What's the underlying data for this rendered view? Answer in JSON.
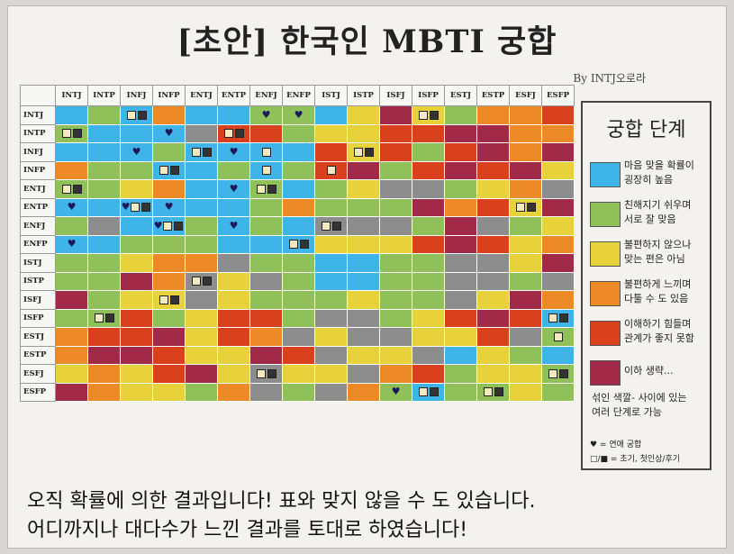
{
  "title": "[초안] 한국인 MBTI 궁합",
  "byline": "By INTJ오로라",
  "types": [
    "INTJ",
    "INTP",
    "INFJ",
    "INFP",
    "ENTJ",
    "ENTP",
    "ENFJ",
    "ENFP",
    "ISTJ",
    "ISTP",
    "ISFJ",
    "ISFP",
    "ESTJ",
    "ESTP",
    "ESFJ",
    "ESFP"
  ],
  "colors": {
    "b": "#3fb4e8",
    "g": "#8fc05a",
    "y": "#e8d23c",
    "o": "#ec8a28",
    "r": "#d8401e",
    "m": "#a02a48",
    "x": "#8d8d8d"
  },
  "matrix": [
    "bgbobbggbymygoor",
    "gbbbxrrgyyrrmmoo",
    "bbbgbbbbryrgrmom",
    "oggbbgbgrmgrmrmy",
    "ggyobbgbgyxxgyox",
    "bbbbbbgogggmorym",
    "gxbbgbgbxxxgmxgy",
    "bbgggbbbyyyrmryo",
    "ggyooxggbbggxxym",
    "ggmoxyxgbbggxxgx",
    "mgyyxygggyggxymo",
    "ggrgyrrgxxgyrmrb",
    "orrmyroxyxxyyrxg",
    "ommryymrxyyxbygb",
    "yoyrmyxyyxorgyyg",
    "moyygoxgxogbggyg"
  ],
  "hearts": [
    [
      0,
      6
    ],
    [
      0,
      7
    ],
    [
      1,
      3
    ],
    [
      2,
      2
    ],
    [
      2,
      5
    ],
    [
      4,
      5
    ],
    [
      5,
      0
    ],
    [
      5,
      2
    ],
    [
      5,
      3
    ],
    [
      6,
      3
    ],
    [
      6,
      5
    ],
    [
      7,
      0
    ],
    [
      15,
      10
    ]
  ],
  "marks": [
    [
      0,
      2,
      "lm"
    ],
    [
      0,
      11,
      "lm"
    ],
    [
      1,
      0,
      "lm"
    ],
    [
      1,
      5,
      "lm"
    ],
    [
      2,
      4,
      "lm"
    ],
    [
      2,
      6,
      "l"
    ],
    [
      2,
      9,
      "lm"
    ],
    [
      3,
      3,
      "lm"
    ],
    [
      3,
      6,
      "l"
    ],
    [
      3,
      8,
      "l"
    ],
    [
      4,
      0,
      "lm"
    ],
    [
      4,
      6,
      "lm"
    ],
    [
      5,
      2,
      "lm"
    ],
    [
      5,
      14,
      "lm"
    ],
    [
      6,
      3,
      "lm"
    ],
    [
      6,
      8,
      "lm"
    ],
    [
      7,
      7,
      "lm"
    ],
    [
      9,
      4,
      "lm"
    ],
    [
      10,
      3,
      "lm"
    ],
    [
      11,
      1,
      "lm"
    ],
    [
      11,
      15,
      "lm"
    ],
    [
      12,
      15,
      "l"
    ],
    [
      14,
      6,
      "lm"
    ],
    [
      14,
      15,
      "lm"
    ],
    [
      15,
      11,
      "lm"
    ],
    [
      15,
      13,
      "lm"
    ]
  ],
  "legend": {
    "title": "궁합 단계",
    "items": [
      {
        "color": "b",
        "l1": "마음 맞을 확률이",
        "l2": "굉장히 높음"
      },
      {
        "color": "g",
        "l1": "친해지기 쉬우며",
        "l2": "서로 잘 맞음"
      },
      {
        "color": "y",
        "l1": "불편하지 않으나",
        "l2": "맞는 편은 아님"
      },
      {
        "color": "o",
        "l1": "불편하게 느끼며",
        "l2": "다툴 수 도 있음"
      },
      {
        "color": "r",
        "l1": "이해하기 힘들며",
        "l2": "관계가 좋지 못함"
      },
      {
        "color": "m",
        "l1": "이하 생략...",
        "l2": ""
      }
    ],
    "note_l1": "섞인 색깔- 사이에 있는",
    "note_l2": "여러 단계로 가능",
    "key_heart": "♥ = 연애 궁합",
    "key_marks": "□/■ = 초기, 첫인상/후기"
  },
  "footer_l1": "오직 확률에 의한 결과입니다! 표와 맞지 않을 수 도 있습니다.",
  "footer_l2": "어디까지나 대다수가 느낀 결과를 토대로 하였습니다!"
}
